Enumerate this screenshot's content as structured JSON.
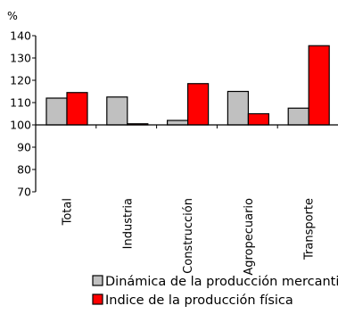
{
  "chart_data": {
    "type": "bar",
    "ylabel": "%",
    "ylim": [
      70,
      140
    ],
    "yticks": [
      70,
      80,
      90,
      100,
      110,
      120,
      130,
      140
    ],
    "baseline": 100,
    "grid": false,
    "legend_position": "bottom-right",
    "categories": [
      "Total",
      "Industria",
      "Construcción",
      "Agropecuario",
      "Transporte"
    ],
    "series": [
      {
        "name": "Dinámica de la producción mercantil",
        "color": "#c0c0c0",
        "values": [
          112,
          112.5,
          102,
          115,
          107.5
        ]
      },
      {
        "name": "Indice de la producción física",
        "color": "#ff0000",
        "values": [
          114.5,
          100.5,
          118.5,
          105,
          135.5
        ]
      }
    ]
  }
}
